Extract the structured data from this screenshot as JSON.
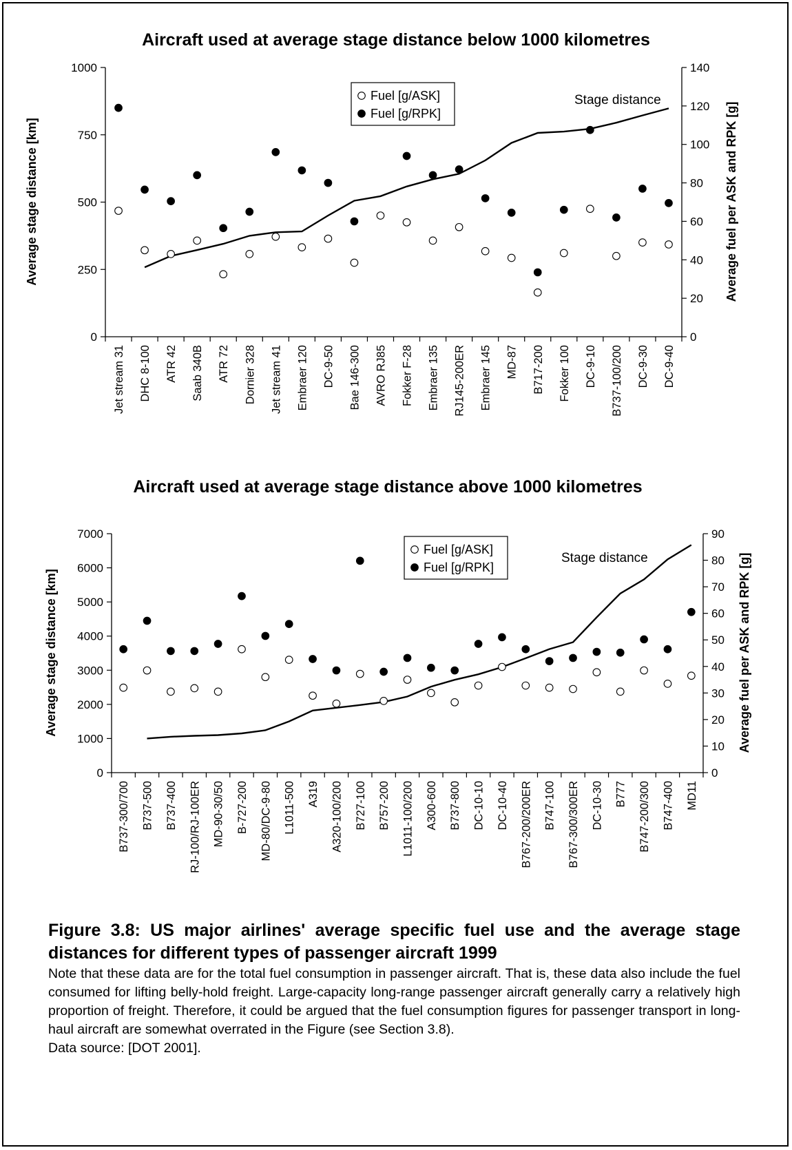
{
  "charts": [
    {
      "type": "line+scatter",
      "title": "Aircraft used at average stage distance below 1000 kilometres",
      "ylabel_left": "Average stage distance [km]",
      "ylabel_right": "Average fuel per ASK and RPK [g]",
      "ylim_left": [
        0,
        1000
      ],
      "ylim_right": [
        0,
        140
      ],
      "yticks_left": [
        "0",
        "250",
        "500",
        "750",
        "1000"
      ],
      "yticks_right": [
        "0",
        "20",
        "40",
        "60",
        "80",
        "100",
        "120",
        "140"
      ],
      "grid": false,
      "legend_position": "top-center",
      "legend": {
        "ask": "Fuel [g/ASK]",
        "rpk": "Fuel [g/RPK]"
      },
      "line_label": "Stage distance",
      "categories": [
        "Jet stream 31",
        "DHC 8-100",
        "ATR 42",
        "Saab 340B",
        "ATR 72",
        "Dornier 328",
        "Jet stream 41",
        "Embraer 120",
        "DC-9-50",
        "Bae 146-300",
        "AVRO RJ85",
        "Fokker F-28",
        "Embraer 135",
        "RJ145-200ER",
        "Embraer 145",
        "MD-87",
        "B717-200",
        "Fokker 100",
        "DC-9-10",
        "B737-100/200",
        "DC-9-30",
        "DC-9-40"
      ],
      "series": [
        {
          "name": "Fuel [g/ASK]",
          "axis": "right",
          "marker": "open-circle",
          "values": [
            65.5,
            45,
            43,
            50,
            32.5,
            43,
            52,
            46.5,
            51,
            38.5,
            63,
            59.5,
            50,
            57,
            44.5,
            41,
            23,
            43.5,
            66.5,
            42,
            49,
            48
          ]
        },
        {
          "name": "Fuel [g/RPK]",
          "axis": "right",
          "marker": "filled-circle",
          "values": [
            119,
            76.5,
            70.5,
            84,
            56.5,
            65,
            96,
            86.5,
            80,
            60,
            null,
            94,
            84,
            87,
            72,
            64.5,
            33.5,
            66,
            107.5,
            62,
            77,
            69.5
          ]
        },
        {
          "name": "Stage distance",
          "axis": "left",
          "marker": "line",
          "values": [
            null,
            258,
            300,
            322,
            345,
            375,
            388,
            391,
            450,
            505,
            522,
            558,
            585,
            605,
            655,
            720,
            757,
            762,
            772,
            795,
            822,
            848
          ]
        }
      ]
    },
    {
      "type": "line+scatter",
      "title": "Aircraft used at average stage distance above 1000 kilometres",
      "ylabel_left": "Average stage distance [km]",
      "ylabel_right": "Average fuel per ASK and RPK [g]",
      "ylim_left": [
        0,
        7000
      ],
      "ylim_right": [
        0,
        90
      ],
      "yticks_left": [
        "0",
        "1000",
        "2000",
        "3000",
        "4000",
        "5000",
        "6000",
        "7000"
      ],
      "yticks_right": [
        "0",
        "10",
        "20",
        "30",
        "40",
        "50",
        "60",
        "70",
        "80",
        "90"
      ],
      "grid": false,
      "legend_position": "top-center",
      "legend": {
        "ask": "Fuel [g/ASK]",
        "rpk": "Fuel [g/RPK]"
      },
      "line_label": "Stage distance",
      "categories": [
        "B737-300/700",
        "B737-500",
        "B737-400",
        "RJ-100/RJ-100ER",
        "MD-90-30/50",
        "B-727-200",
        "MD-80/DC-9-80",
        "L1011-500",
        "A319",
        "A320-100/200",
        "B727-100",
        "B757-200",
        "L1011-100/200",
        "A300-600",
        "B737-800",
        "DC-10-10",
        "DC-10-40",
        "B767-200/200ER",
        "B747-100",
        "B767-300/300ER",
        "DC-10-30",
        "B777",
        "B747-200/300",
        "B747-400",
        "MD11"
      ],
      "series": [
        {
          "name": "Fuel [g/ASK]",
          "axis": "right",
          "marker": "open-circle",
          "values": [
            32,
            38.5,
            30.5,
            31.8,
            30.5,
            46.5,
            36,
            42.5,
            29,
            26,
            37.2,
            27,
            35,
            30,
            26.5,
            32.8,
            39.8,
            32.8,
            32,
            31.5,
            37.8,
            30.5,
            38.5,
            33.5,
            36.5
          ]
        },
        {
          "name": "Fuel [g/RPK]",
          "axis": "right",
          "marker": "filled-circle",
          "values": [
            46.5,
            57.2,
            45.8,
            45.8,
            48.5,
            66.5,
            51.5,
            56,
            42.8,
            38.5,
            79.8,
            38,
            43.2,
            39.5,
            38.5,
            48.5,
            51,
            46.5,
            42,
            43.2,
            45.5,
            45.2,
            50.2,
            46.5,
            60.5
          ]
        },
        {
          "name": "Stage distance",
          "axis": "left",
          "marker": "line",
          "values": [
            null,
            1000,
            1050,
            1080,
            1100,
            1150,
            1240,
            1500,
            1820,
            1900,
            1980,
            2070,
            2230,
            2520,
            2720,
            2880,
            3090,
            3350,
            3620,
            3820,
            4550,
            5250,
            5660,
            6250,
            6670
          ]
        }
      ]
    }
  ],
  "caption": {
    "title": "Figure 3.8: US major airlines' average specific fuel use and the average stage distances for different types of passenger aircraft 1999",
    "note": "Note that these data are for the total fuel consumption in passenger aircraft. That is, these data also include the fuel consumed for lifting belly-hold freight. Large-capacity long-range passenger aircraft generally carry a relatively high proportion of freight. Therefore, it could be argued that the fuel consumption figures for passenger transport in long-haul aircraft are somewhat overrated in the Figure (see Section 3.8).",
    "source": "Data source: [DOT 2001]."
  }
}
